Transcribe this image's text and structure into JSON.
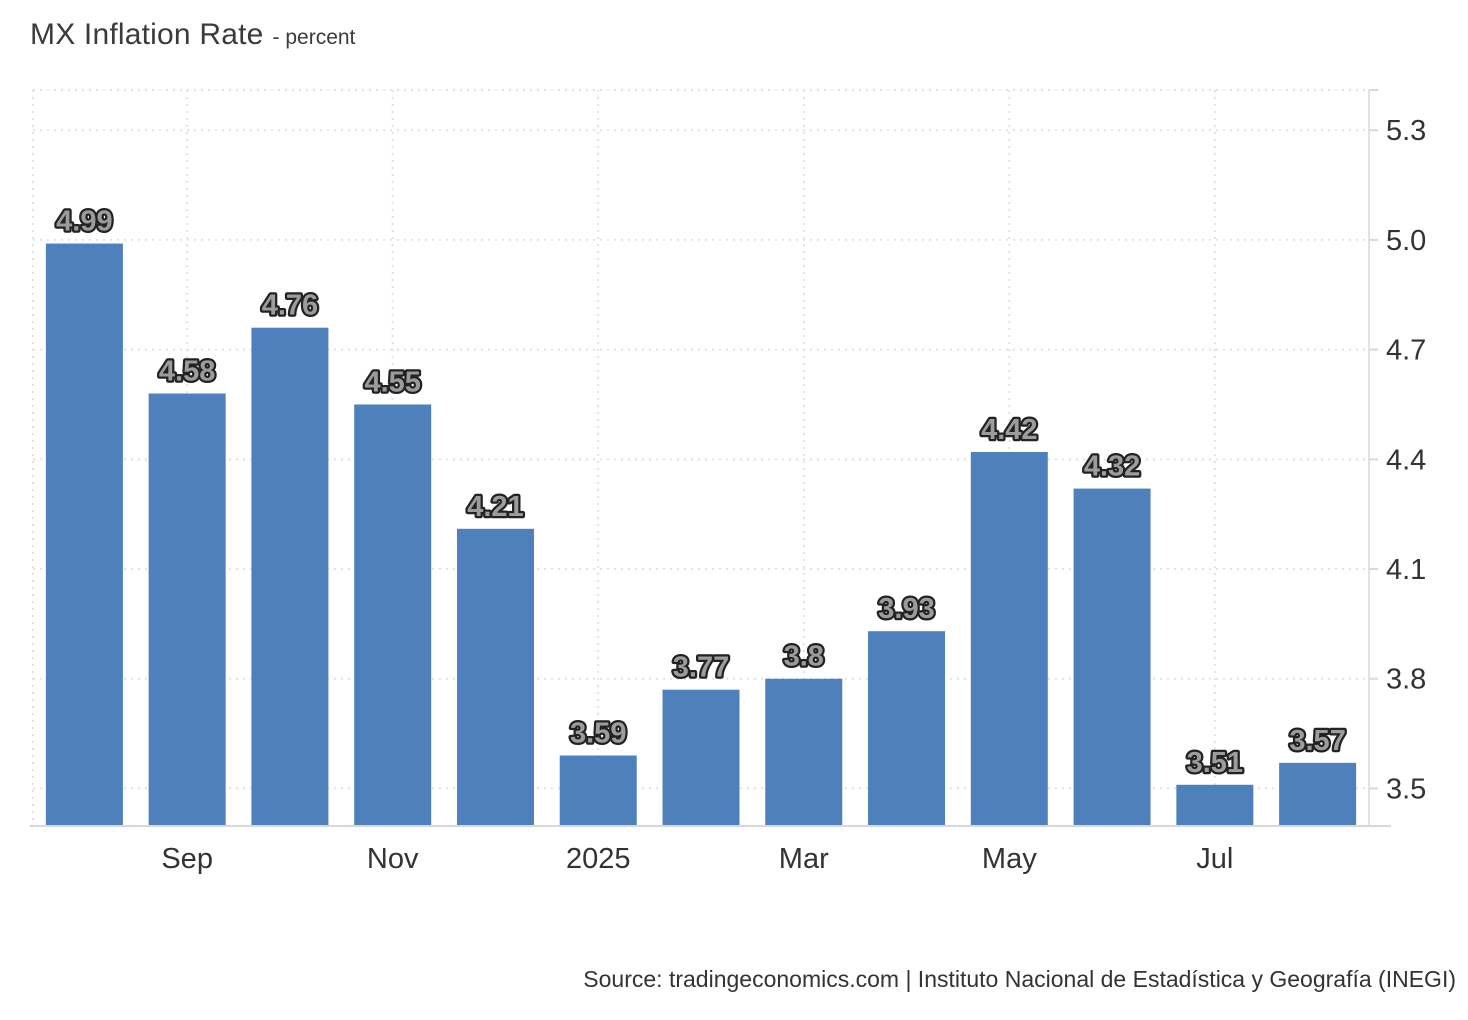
{
  "header": {
    "title": "MX Inflation Rate",
    "subtitle": "- percent"
  },
  "source": {
    "text": "Source: tradingeconomics.com | Instituto Nacional de Estadística y Geografía (INEGI)"
  },
  "chart_data": {
    "type": "bar",
    "title": "MX Inflation Rate",
    "ylabel": "percent",
    "xlabel": "",
    "values": [
      4.99,
      4.58,
      4.76,
      4.55,
      4.21,
      3.59,
      3.77,
      3.8,
      3.93,
      4.42,
      4.32,
      3.51,
      3.57
    ],
    "x_ticks": [
      {
        "bar_index": 1,
        "label": "Sep"
      },
      {
        "bar_index": 3,
        "label": "Nov"
      },
      {
        "bar_index": 5,
        "label": "2025"
      },
      {
        "bar_index": 7,
        "label": "Mar"
      },
      {
        "bar_index": 9,
        "label": "May"
      },
      {
        "bar_index": 11,
        "label": "Jul"
      }
    ],
    "y_ticks": [
      {
        "label": "5.3",
        "value": 5.3
      },
      {
        "label": "5.0",
        "value": 5.0
      },
      {
        "label": "4.7",
        "value": 4.7
      },
      {
        "label": "4.4",
        "value": 4.4
      },
      {
        "label": "4.1",
        "value": 4.1
      },
      {
        "label": "3.8",
        "value": 3.8
      },
      {
        "label": "3.5",
        "value": 3.5
      }
    ],
    "ylim": [
      3.4,
      5.41
    ],
    "y_axis_side": "right",
    "grid": "dotted",
    "legend": "none",
    "colors": {
      "bar": "#4e80bc",
      "value_label_fill": "#9c9c9c",
      "value_label_outline": "#222222",
      "axis_text": "#333333",
      "gridline": "#e2e2e2",
      "border": "#d8d8d8"
    }
  }
}
